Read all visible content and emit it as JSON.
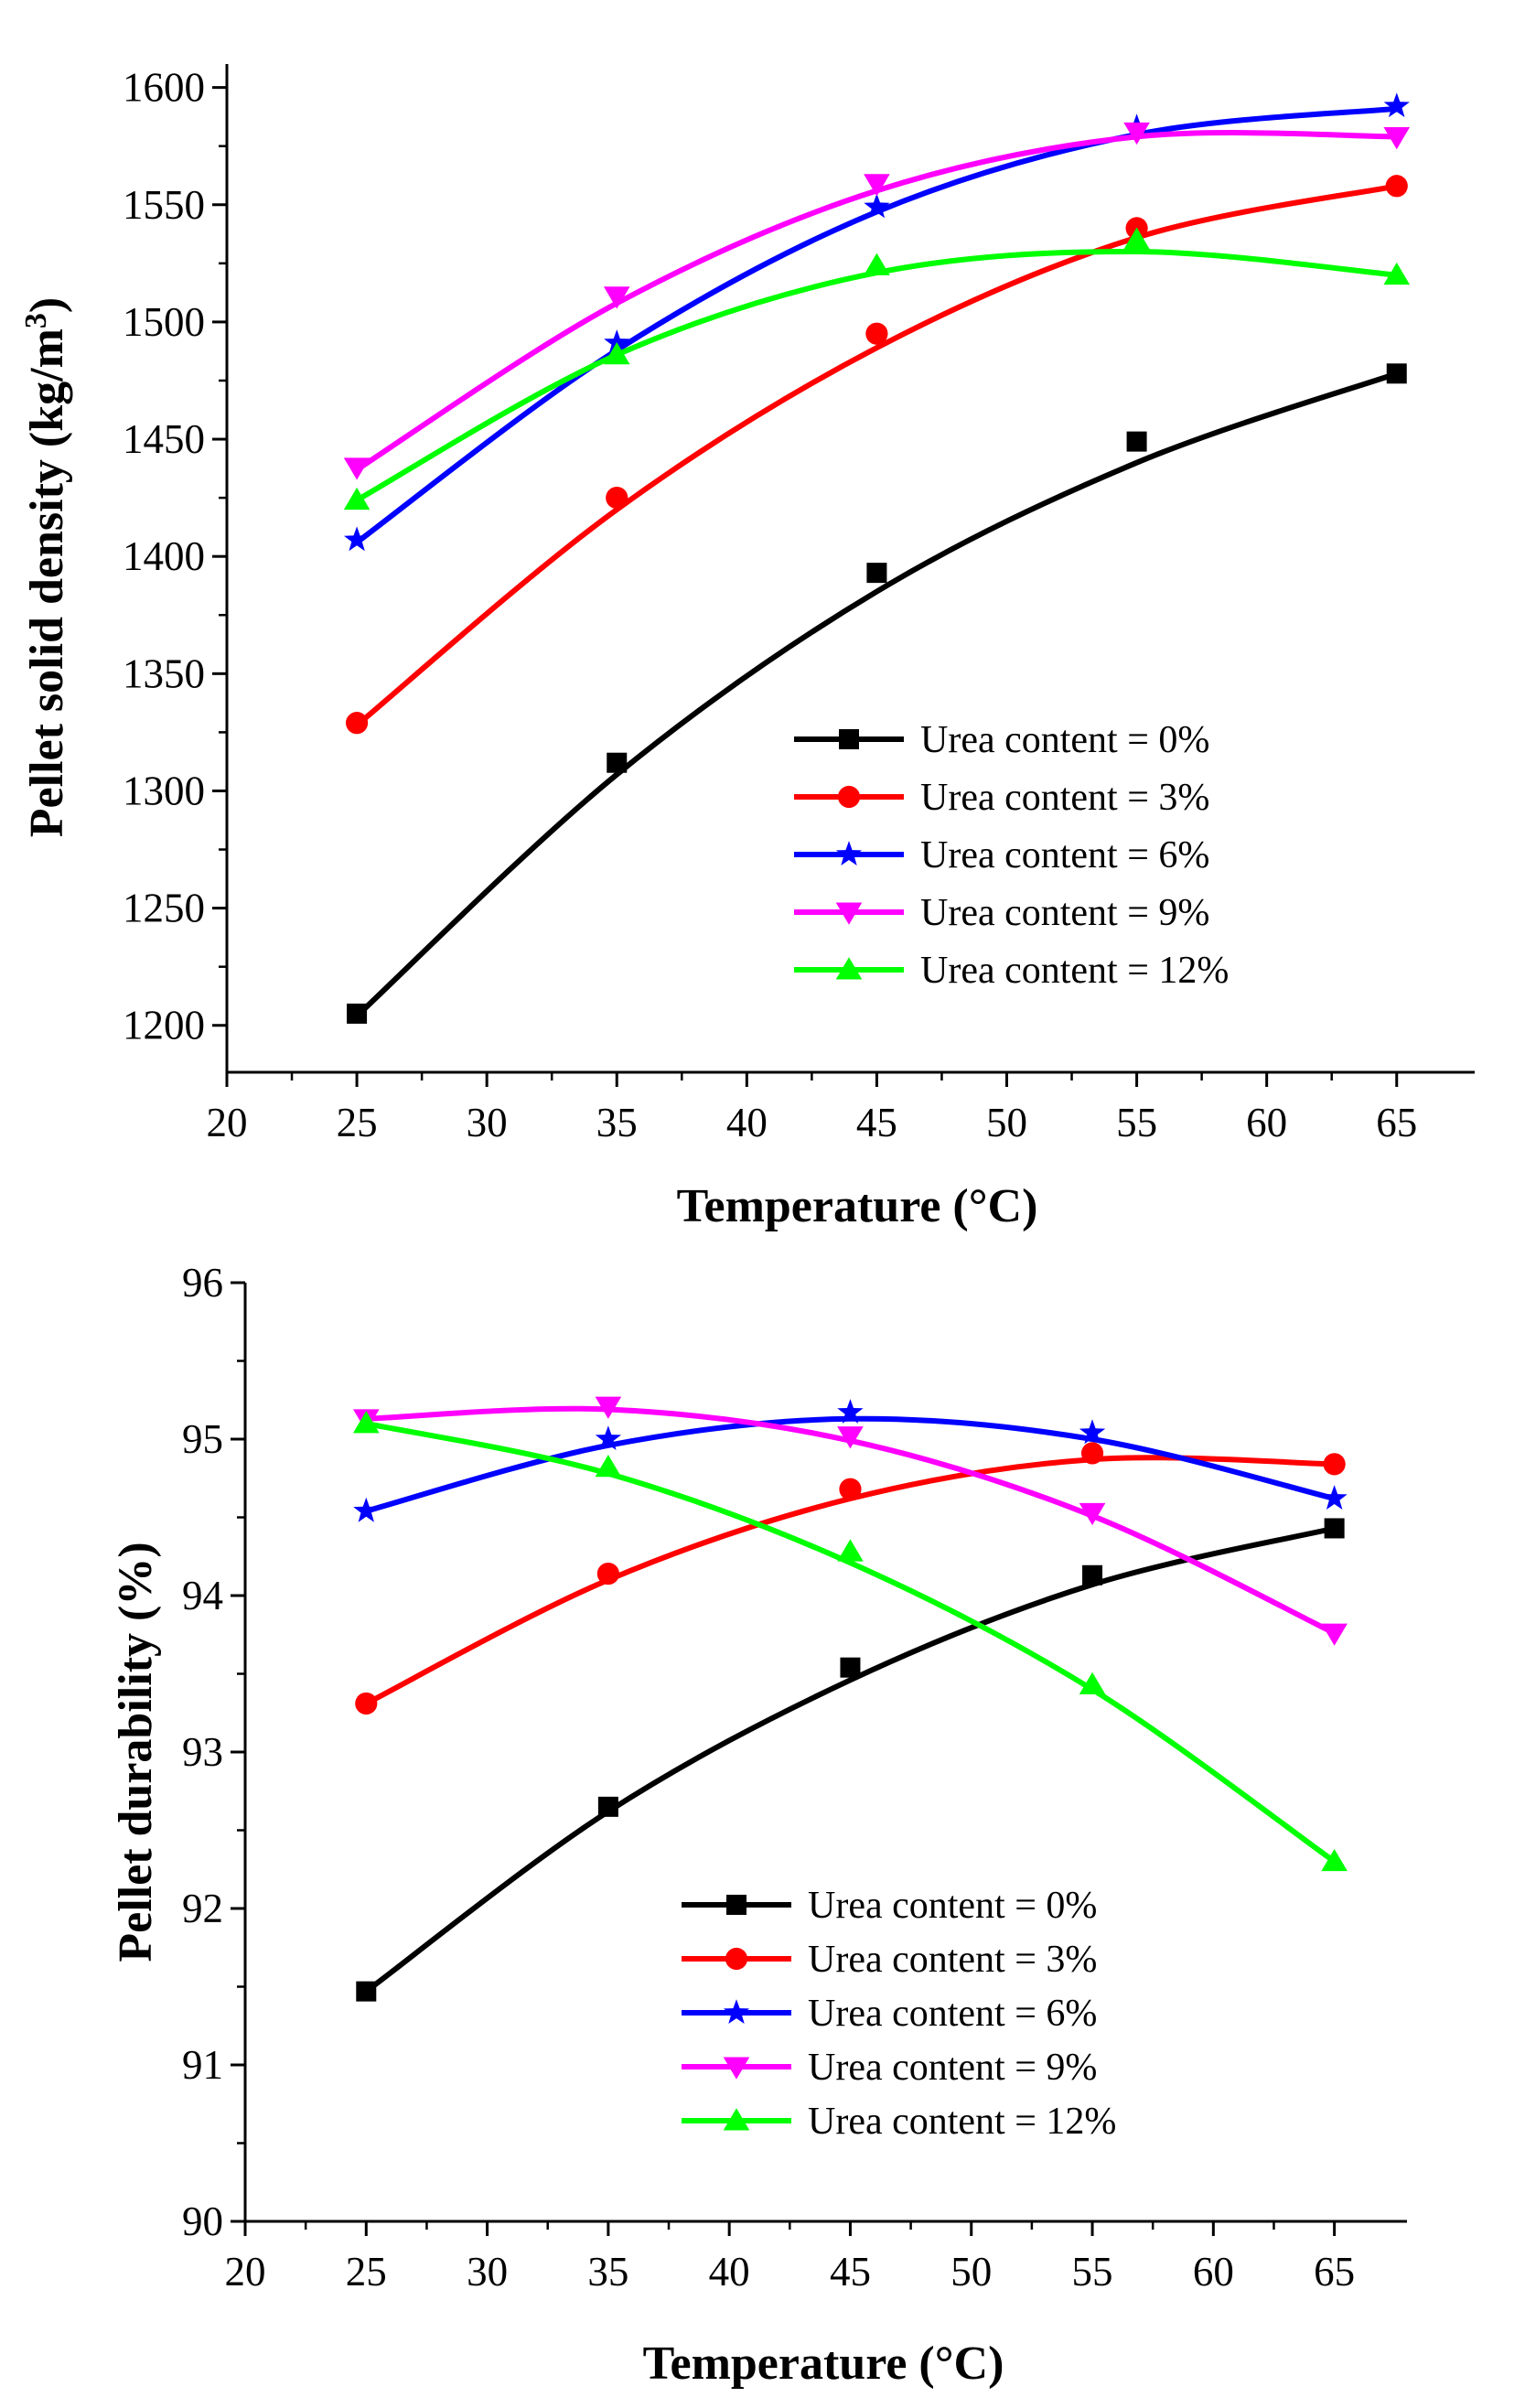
{
  "chart_data": [
    {
      "type": "line",
      "title": "",
      "xlabel": "Temperature (°C)",
      "ylabel": "Pellet solid density (kg/m",
      "ylabel_sup": "3",
      "ylabel_close": ")",
      "xlim": [
        20,
        68
      ],
      "ylim": [
        1180,
        1610
      ],
      "xticks": [
        20,
        25,
        30,
        35,
        40,
        45,
        50,
        55,
        60,
        65
      ],
      "yticks": [
        1200,
        1250,
        1300,
        1350,
        1400,
        1450,
        1500,
        1550,
        1600
      ],
      "x": [
        25,
        35,
        45,
        55,
        65
      ],
      "legend_position": "center-right",
      "series": [
        {
          "name": "Urea content = 0%",
          "color": "#000000",
          "marker": "square",
          "values": [
            1205,
            1312,
            1393,
            1449,
            1478
          ],
          "fit": [
            1204,
            1307,
            1385,
            1440,
            1478
          ]
        },
        {
          "name": "Urea content = 3%",
          "color": "#ff0000",
          "marker": "circle",
          "values": [
            1329,
            1425,
            1495,
            1540,
            1558
          ],
          "fit": [
            1328,
            1420,
            1489,
            1536,
            1558
          ]
        },
        {
          "name": "Urea content = 6%",
          "color": "#0000ff",
          "marker": "star",
          "values": [
            1407,
            1491,
            1549,
            1583,
            1592
          ],
          "fit": [
            1406,
            1488,
            1547,
            1580,
            1591
          ]
        },
        {
          "name": "Urea content = 9%",
          "color": "#ff00ff",
          "marker": "triangle-down",
          "values": [
            1438,
            1511,
            1559,
            1581,
            1579
          ],
          "fit": [
            1437,
            1508,
            1556,
            1579,
            1579
          ]
        },
        {
          "name": "Urea content = 12%",
          "color": "#00ff00",
          "marker": "triangle-up",
          "values": [
            1424,
            1486,
            1524,
            1535,
            1520
          ],
          "fit": [
            1424,
            1486,
            1521,
            1530,
            1520
          ]
        }
      ]
    },
    {
      "type": "line",
      "title": "",
      "xlabel": "Temperature (°C)",
      "ylabel": "Pellet durability (%)",
      "ylabel_sup": "",
      "ylabel_close": "",
      "xlim": [
        20,
        68
      ],
      "ylim": [
        90,
        96
      ],
      "xticks": [
        20,
        25,
        30,
        35,
        40,
        45,
        50,
        55,
        60,
        65
      ],
      "yticks": [
        90,
        91,
        92,
        93,
        94,
        95,
        96
      ],
      "x": [
        25,
        35,
        45,
        55,
        65
      ],
      "legend_position": "bottom-center",
      "series": [
        {
          "name": "Urea content = 0%",
          "color": "#000000",
          "marker": "square",
          "values": [
            91.47,
            92.65,
            93.54,
            94.13,
            94.43
          ],
          "fit": [
            91.47,
            92.62,
            93.46,
            94.07,
            94.43
          ]
        },
        {
          "name": "Urea content = 3%",
          "color": "#ff0000",
          "marker": "circle",
          "values": [
            93.31,
            94.14,
            94.68,
            94.91,
            94.84
          ],
          "fit": [
            93.31,
            94.1,
            94.62,
            94.87,
            94.84
          ]
        },
        {
          "name": "Urea content = 6%",
          "color": "#0000ff",
          "marker": "star",
          "values": [
            94.54,
            95.0,
            95.17,
            95.04,
            94.62
          ],
          "fit": [
            94.54,
            94.96,
            95.13,
            95.0,
            94.62
          ]
        },
        {
          "name": "Urea content = 9%",
          "color": "#ff00ff",
          "marker": "triangle-down",
          "values": [
            95.13,
            95.21,
            95.02,
            94.53,
            93.76
          ],
          "fit": [
            95.13,
            95.19,
            94.99,
            94.51,
            93.76
          ]
        },
        {
          "name": "Urea content = 12%",
          "color": "#00ff00",
          "marker": "triangle-up",
          "values": [
            95.1,
            94.82,
            94.28,
            93.43,
            92.3
          ],
          "fit": [
            95.1,
            94.78,
            94.21,
            93.4,
            92.3
          ]
        }
      ]
    }
  ]
}
